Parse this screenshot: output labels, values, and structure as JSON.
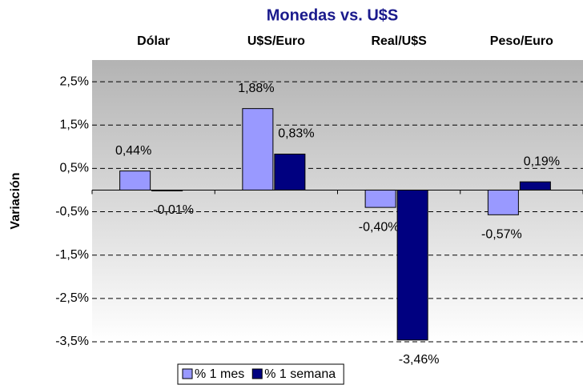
{
  "chart_data": {
    "type": "bar",
    "title": "Monedas vs. U$S",
    "y_label": "Variación",
    "categories": [
      "Dólar",
      "U$S/Euro",
      "Real/U$S",
      "Peso/Euro"
    ],
    "series": [
      {
        "name": "% 1 mes",
        "color": "#9999ff",
        "values": [
          0.44,
          1.88,
          -0.4,
          -0.57
        ],
        "value_labels": [
          "0,44%",
          "1,88%",
          "-0,40%",
          "-0,57%"
        ]
      },
      {
        "name": "% 1 semana",
        "color": "#000080",
        "values": [
          -0.01,
          0.83,
          -3.46,
          0.19
        ],
        "value_labels": [
          "-0,01%",
          "0,83%",
          "-3,46%",
          "0,19%"
        ]
      }
    ],
    "ylim": [
      -3.5,
      3
    ],
    "yticks": [
      {
        "value": 2.5,
        "label": "2,5%"
      },
      {
        "value": 1.5,
        "label": "1,5%"
      },
      {
        "value": 0.5,
        "label": "0,5%"
      },
      {
        "value": -0.5,
        "label": "-0,5%"
      },
      {
        "value": -1.5,
        "label": "-1,5%"
      },
      {
        "value": -2.5,
        "label": "-2,5%"
      },
      {
        "value": -3.5,
        "label": "-3,5%"
      }
    ],
    "grid": true,
    "legend": "bottom"
  }
}
